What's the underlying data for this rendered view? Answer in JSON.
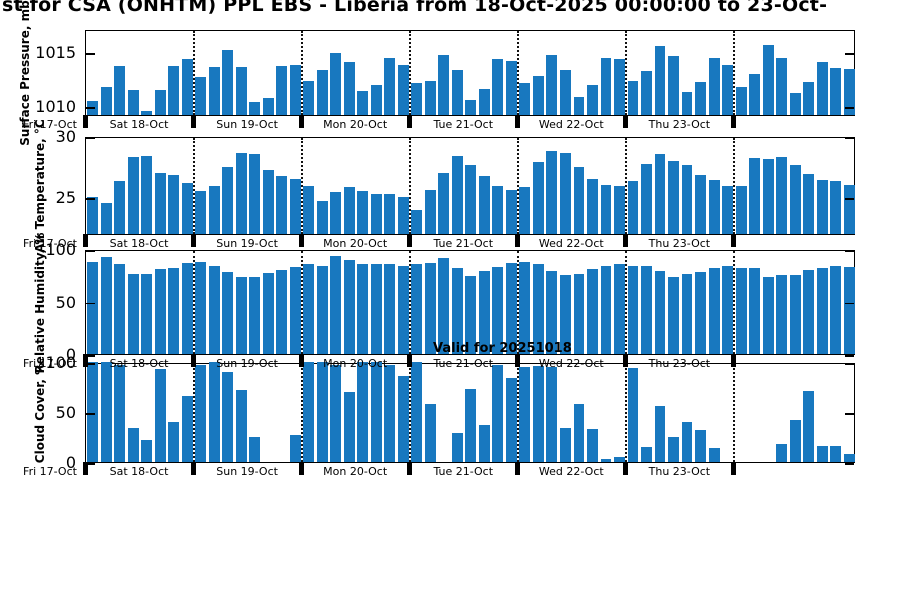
{
  "title": "st for CSA (ONHTM) PPL EBS  - Liberia from 18-Oct-2025 00:00:00 to 23-Oct-",
  "annotations": {
    "valid_for": "Valid for 20251018"
  },
  "x_axis": {
    "first_tick_label": "Fri 17-Oct",
    "day_labels": [
      "Sat 18-Oct",
      "Sun 19-Oct",
      "Mon 20-Oct",
      "Tue 21-Oct",
      "Wed 22-Oct",
      "Thu 23-Oct"
    ],
    "points_per_day": 8,
    "grid": "dotted-vertical-at-day-boundaries"
  },
  "chart_data": [
    {
      "type": "bar",
      "name": "surface-pressure",
      "ylabel": "Surface Pressure, mb",
      "ylim": [
        1009.2,
        1017.1
      ],
      "yticks": [
        1010,
        1015
      ],
      "bar_color": "#1878bf",
      "values": [
        1010.5,
        1011.8,
        1013.7,
        1011.5,
        1009.6,
        1011.5,
        1013.7,
        1014.3,
        1012.7,
        1013.6,
        1015.2,
        1013.6,
        1010.4,
        1010.8,
        1013.7,
        1013.8,
        1012.3,
        1013.3,
        1014.9,
        1014.1,
        1011.4,
        1012.0,
        1014.4,
        1013.8,
        1012.1,
        1012.3,
        1014.7,
        1013.3,
        1010.6,
        1011.6,
        1014.3,
        1014.2,
        1012.1,
        1012.8,
        1014.7,
        1013.3,
        1010.9,
        1012.0,
        1014.4,
        1014.3,
        1012.3,
        1013.2,
        1015.5,
        1014.6,
        1011.3,
        1012.2,
        1014.4,
        1013.8,
        1011.8,
        1013.0,
        1015.6,
        1014.4,
        1011.2,
        1012.2,
        1014.1,
        1013.5,
        1013.4
      ]
    },
    {
      "type": "bar",
      "name": "air-temperature",
      "ylabel": "Air Temperature, °C",
      "ylim": [
        22,
        30
      ],
      "yticks": [
        25,
        30
      ],
      "bar_color": "#1878bf",
      "values": [
        25.0,
        24.5,
        26.3,
        28.3,
        28.4,
        27.0,
        26.8,
        26.2,
        25.5,
        25.9,
        27.5,
        28.6,
        28.5,
        27.2,
        26.7,
        26.5,
        25.9,
        24.7,
        25.4,
        25.8,
        25.5,
        25.3,
        25.3,
        25.0,
        24.0,
        25.6,
        27.0,
        28.4,
        27.6,
        26.7,
        25.9,
        25.6,
        25.8,
        27.9,
        28.8,
        28.6,
        27.5,
        26.5,
        26.0,
        25.9,
        26.3,
        27.7,
        28.5,
        28.0,
        27.6,
        26.8,
        26.4,
        25.9,
        25.9,
        28.2,
        28.1,
        28.3,
        27.6,
        26.9,
        26.4,
        26.3,
        26.0
      ]
    },
    {
      "type": "bar",
      "name": "relative-humidity",
      "ylabel": "Relative Humidity, %",
      "ylim": [
        0,
        100
      ],
      "yticks": [
        0,
        50,
        100
      ],
      "bar_color": "#1878bf",
      "values": [
        88,
        92,
        86,
        76,
        76,
        81,
        82,
        87,
        88,
        84,
        78,
        73,
        73,
        77,
        80,
        83,
        86,
        84,
        93,
        90,
        86,
        86,
        86,
        84,
        86,
        87,
        91,
        82,
        74,
        79,
        83,
        87,
        88,
        86,
        79,
        75,
        76,
        81,
        84,
        86,
        84,
        84,
        79,
        73,
        76,
        78,
        82,
        84,
        82,
        82,
        73,
        75,
        75,
        80,
        82,
        84,
        83
      ]
    },
    {
      "type": "bar",
      "name": "cloud-cover",
      "ylabel": "Cloud Cover, %",
      "ylim": [
        0,
        100
      ],
      "yticks": [
        0,
        50,
        100
      ],
      "bar_color": "#1878bf",
      "values": [
        100,
        100,
        97,
        34,
        22,
        93,
        40,
        66,
        97,
        100,
        90,
        72,
        25,
        0,
        0,
        27,
        100,
        100,
        97,
        70,
        100,
        100,
        97,
        86,
        100,
        58,
        0,
        29,
        73,
        37,
        97,
        84,
        95,
        96,
        95,
        34,
        58,
        33,
        3,
        5,
        94,
        15,
        56,
        25,
        40,
        32,
        14,
        0,
        0,
        0,
        0,
        18,
        42,
        71,
        16,
        16,
        8
      ]
    }
  ]
}
